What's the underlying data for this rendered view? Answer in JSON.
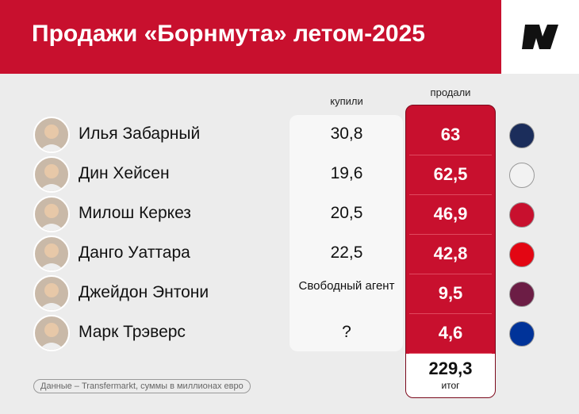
{
  "header": {
    "title": "Продажи «Борнмута» летом-2025"
  },
  "table": {
    "columns": [
      "купили",
      "продали"
    ],
    "rows": [
      [
        "Илья Забарный",
        "30,8",
        "63"
      ],
      [
        "Дин Хейсен",
        "19,6",
        "62,5"
      ],
      [
        "Милош Керкез",
        "20,5",
        "46,9"
      ],
      [
        "Данго Уаттара",
        "22,5",
        "42,8"
      ],
      [
        "Джейдон Энтони",
        "Свободный агент",
        "9,5"
      ],
      [
        "Марк Трэверс",
        "?",
        "4,6"
      ]
    ]
  },
  "total": {
    "value": "229,3",
    "label": "итог"
  },
  "source": "Данные – Transfermarkt, суммы в миллионах евро"
}
